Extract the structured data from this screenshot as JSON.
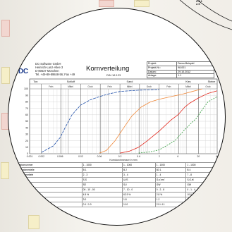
{
  "header": {
    "company_lines": [
      "DC-Software GmbH",
      "Heinrich-Lanz-Allee 3",
      "D-80637 München",
      "Tel. +49-89-89848-56; Fax +49"
    ],
    "logo": "DC",
    "title": "Kornverteilung",
    "subtitle": "DIN 18 123",
    "meta": [
      {
        "label": "Projekt:",
        "value": "Demo-Beispiel"
      },
      {
        "label": "Projekt-Nr.:",
        "value": "98-001"
      },
      {
        "label": "Datum:",
        "value": "29.10.2012"
      },
      {
        "label": "Anlage:",
        "value": "1.1"
      }
    ]
  },
  "chart_data": {
    "type": "line",
    "top_labels": [
      "Ton",
      "Schluff",
      "Sand",
      "Kies",
      "Steine"
    ],
    "sub_labels": [
      "Fein",
      "Mittel",
      "Grob",
      "Fein",
      "Mittel",
      "Grob",
      "Fein",
      "Mittel",
      "Grob"
    ],
    "y_ticks": [
      100,
      90,
      80,
      70,
      60,
      50,
      40,
      30,
      20,
      10,
      0
    ],
    "x_ticks": [
      "0.001",
      "0.002",
      "0.006",
      "0.02",
      "0.06",
      "0.2",
      "0.6",
      "2",
      "6",
      "20",
      "60"
    ],
    "xlabel": "Korndurchmesser in mm",
    "ylim": [
      0,
      100
    ],
    "series": [
      {
        "color": "#1f4fa8",
        "dash": "4 1.2",
        "points": [
          [
            0.002,
            2
          ],
          [
            0.004,
            12
          ],
          [
            0.006,
            25
          ],
          [
            0.008,
            40
          ],
          [
            0.012,
            60
          ],
          [
            0.02,
            75
          ],
          [
            0.035,
            83
          ],
          [
            0.06,
            88
          ],
          [
            0.1,
            92
          ],
          [
            0.2,
            96
          ],
          [
            0.6,
            98
          ],
          [
            2,
            99
          ]
        ]
      },
      {
        "color": "#f0893a",
        "dash": "",
        "points": [
          [
            0.06,
            1
          ],
          [
            0.09,
            5
          ],
          [
            0.15,
            20
          ],
          [
            0.25,
            40
          ],
          [
            0.4,
            58
          ],
          [
            0.7,
            72
          ],
          [
            1.2,
            80
          ],
          [
            2,
            84
          ],
          [
            4,
            88
          ],
          [
            8,
            92
          ],
          [
            14,
            96
          ],
          [
            25,
            100
          ]
        ]
      },
      {
        "color": "#e3271c",
        "dash": "",
        "points": [
          [
            0.2,
            1
          ],
          [
            0.35,
            4
          ],
          [
            0.6,
            10
          ],
          [
            1,
            20
          ],
          [
            2,
            35
          ],
          [
            4,
            52
          ],
          [
            6,
            60
          ],
          [
            9,
            72
          ],
          [
            12,
            78
          ],
          [
            20,
            86
          ],
          [
            35,
            93
          ],
          [
            60,
            97
          ]
        ]
      },
      {
        "color": "#2f9b3a",
        "dash": "2 1.5",
        "points": [
          [
            0.6,
            1
          ],
          [
            1.2,
            3
          ],
          [
            2,
            6
          ],
          [
            3,
            12
          ],
          [
            5,
            20
          ],
          [
            8,
            34
          ],
          [
            12,
            45
          ],
          [
            18,
            55
          ],
          [
            25,
            68
          ],
          [
            35,
            80
          ],
          [
            60,
            88
          ]
        ]
      }
    ]
  },
  "legend": {
    "rows": [
      [
        "Labornummer",
        "1 - 1000",
        "1 - 1000",
        "1 - 1000",
        "1 - 1000"
      ],
      [
        "Entnahmestelle",
        "B 1",
        "B 2",
        "B3 1",
        "B 4"
      ],
      [
        "Entnahmetiefe",
        "2 - 3",
        "3 - 4",
        "1 - 4",
        "7 - 8"
      ],
      [
        "Bodenart",
        "S,S",
        "U,fS",
        "G,s',ms'",
        "S,G,fs'"
      ],
      [
        "Bodengruppe",
        "SE",
        "SU",
        "GW",
        "GW"
      ],
      [
        "Kornkennzahl",
        "00 - 10 - 00",
        "7 - 10 - 0",
        "0 - 2 - 8",
        "0 - 1 - 4"
      ],
      [
        "Anteil < 0.063 mm",
        "4.5 %",
        "62.9 %",
        "2.8 %",
        "10.0 %"
      ],
      [
        "Ungleichf. U",
        "3.0",
        "1.8",
        "1.2",
        "5.2"
      ],
      [
        "Krümmungszahl Cc",
        "0.1 / 1.0",
        "11.0",
        "2.5 / 4.1",
        "0.4 / 1.0"
      ]
    ]
  }
}
